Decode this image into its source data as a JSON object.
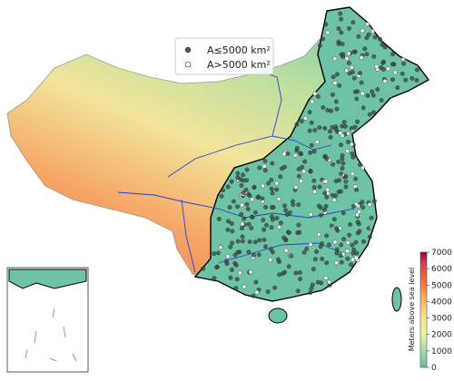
{
  "legend": [
    {
      "label": "A≤5000 km²"
    },
    {
      "label": "A>5000 km²"
    }
  ],
  "colorbar": {
    "label": "Meters above sea level",
    "lim": [
      0,
      7000
    ],
    "ticks": [
      0,
      1000,
      2000,
      3000,
      4000,
      5000,
      6000,
      7000
    ]
  }
}
